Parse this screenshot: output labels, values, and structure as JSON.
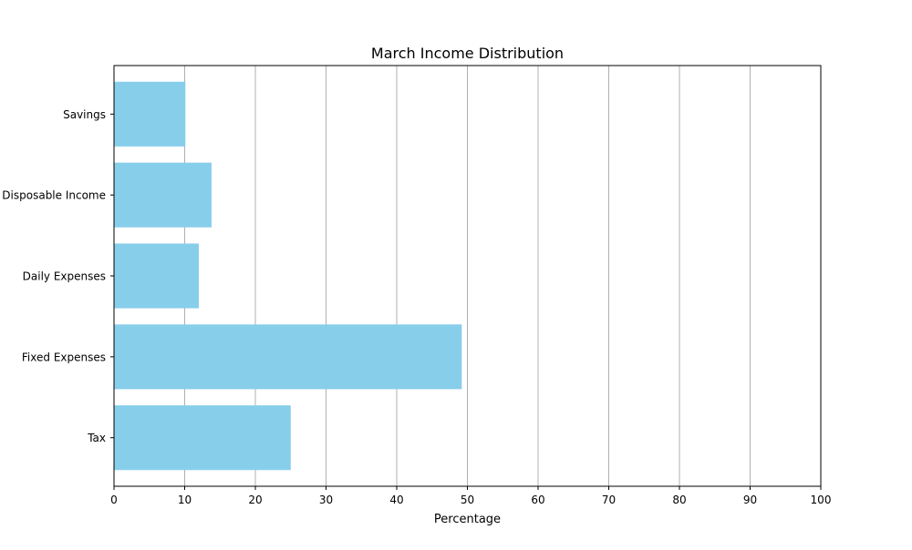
{
  "chart_data": {
    "type": "bar",
    "orientation": "horizontal",
    "title": "March Income Distribution",
    "xlabel": "Percentage",
    "ylabel": "",
    "categories": [
      "Tax",
      "Fixed Expenses",
      "Daily Expenses",
      "Disposable Income",
      "Savings"
    ],
    "values": [
      25,
      49.2,
      12,
      13.8,
      10.1
    ],
    "xlim": [
      0,
      100
    ],
    "xticks": [
      "0",
      "10",
      "20",
      "30",
      "40",
      "50",
      "60",
      "70",
      "80",
      "90",
      "100"
    ],
    "grid": "vertical",
    "bar_color": "#87CEEB",
    "grid_color": "#b0b0b0",
    "legend": "none"
  }
}
